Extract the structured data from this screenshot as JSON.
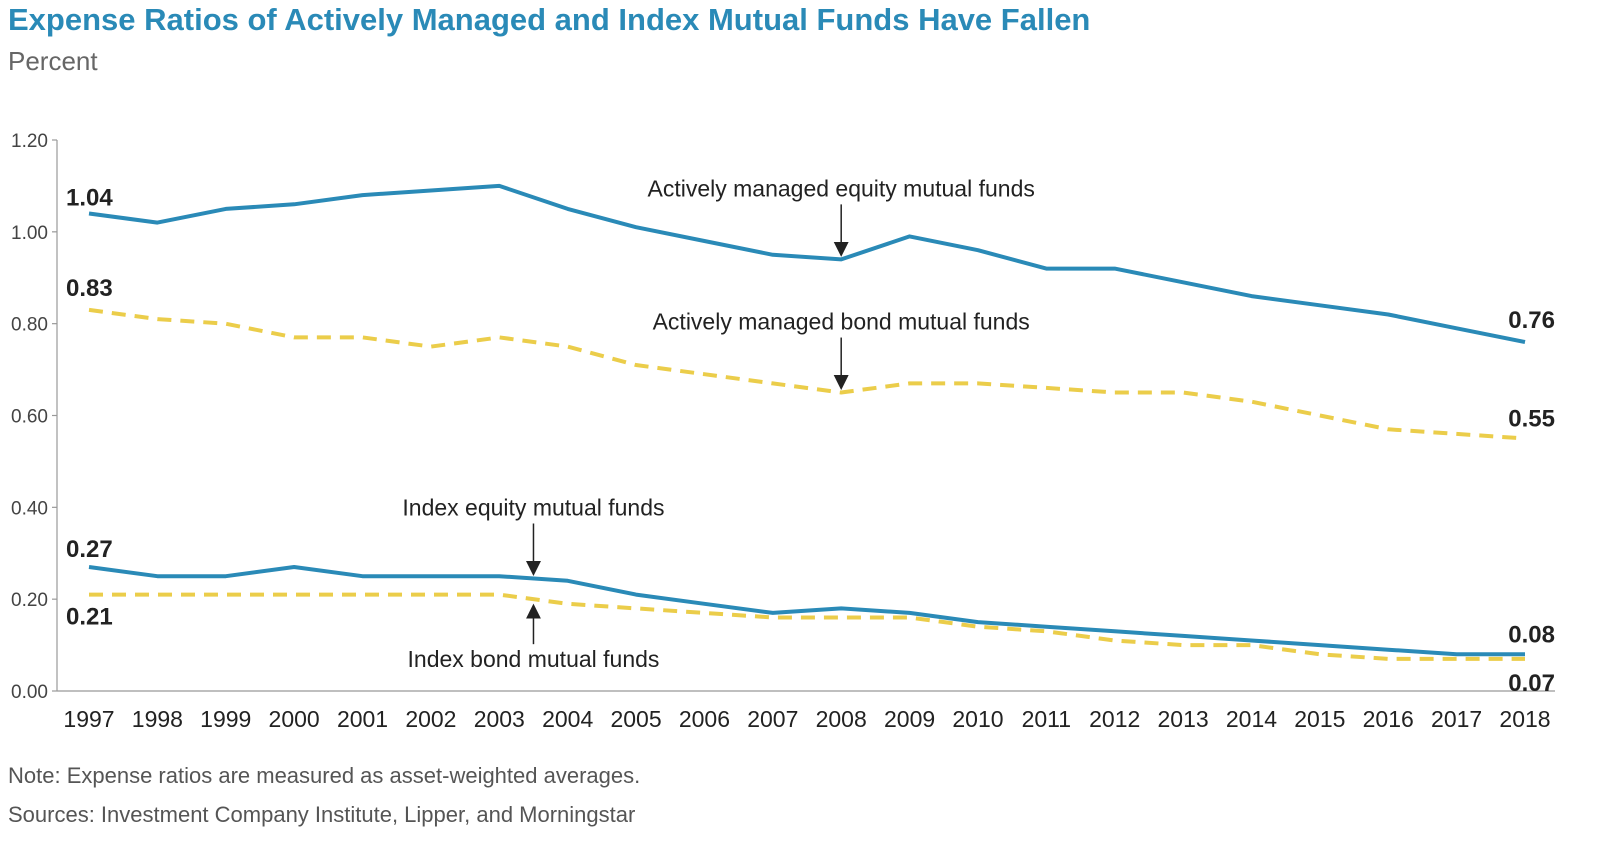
{
  "chart_data": {
    "type": "line",
    "title": "Expense Ratios of Actively Managed and Index Mutual Funds Have Fallen",
    "subtitle": "Percent",
    "x": [
      "1997",
      "1998",
      "1999",
      "2000",
      "2001",
      "2002",
      "2003",
      "2004",
      "2005",
      "2006",
      "2007",
      "2008",
      "2009",
      "2010",
      "2011",
      "2012",
      "2013",
      "2014",
      "2015",
      "2016",
      "2017",
      "2018"
    ],
    "ylim": [
      0,
      1.2
    ],
    "yticks": [
      "0.00",
      "0.20",
      "0.40",
      "0.60",
      "0.80",
      "1.00",
      "1.20"
    ],
    "grid": false,
    "series": [
      {
        "name": "Actively managed equity mutual funds",
        "style": "solid",
        "color": "#2a8ab7",
        "values": [
          1.04,
          1.02,
          1.05,
          1.06,
          1.08,
          1.09,
          1.1,
          1.05,
          1.01,
          0.98,
          0.95,
          0.94,
          0.99,
          0.96,
          0.92,
          0.92,
          0.89,
          0.86,
          0.84,
          0.82,
          0.79,
          0.76
        ],
        "start_label": "1.04",
        "end_label": "0.76"
      },
      {
        "name": "Actively managed bond mutual funds",
        "style": "dashed",
        "color": "#ebcd4a",
        "values": [
          0.83,
          0.81,
          0.8,
          0.77,
          0.77,
          0.75,
          0.77,
          0.75,
          0.71,
          0.69,
          0.67,
          0.65,
          0.67,
          0.67,
          0.66,
          0.65,
          0.65,
          0.63,
          0.6,
          0.57,
          0.56,
          0.55
        ],
        "start_label": "0.83",
        "end_label": "0.55"
      },
      {
        "name": "Index equity mutual funds",
        "style": "solid",
        "color": "#2a8ab7",
        "values": [
          0.27,
          0.25,
          0.25,
          0.27,
          0.25,
          0.25,
          0.25,
          0.24,
          0.21,
          0.19,
          0.17,
          0.18,
          0.17,
          0.15,
          0.14,
          0.13,
          0.12,
          0.11,
          0.1,
          0.09,
          0.08,
          0.08
        ],
        "start_label": "0.27",
        "end_label": "0.08"
      },
      {
        "name": "Index bond mutual funds",
        "style": "dashed",
        "color": "#ebcd4a",
        "values": [
          0.21,
          0.21,
          0.21,
          0.21,
          0.21,
          0.21,
          0.21,
          0.19,
          0.18,
          0.17,
          0.16,
          0.16,
          0.16,
          0.14,
          0.13,
          0.11,
          0.1,
          0.1,
          0.08,
          0.07,
          0.07,
          0.07
        ],
        "start_label": "0.21",
        "end_label": "0.07"
      }
    ],
    "annotations": [
      {
        "text": "Actively managed equity mutual funds",
        "series": 0,
        "at_year": "2008",
        "direction": "down"
      },
      {
        "text": "Actively managed bond mutual funds",
        "series": 1,
        "at_year": "2008",
        "direction": "down"
      },
      {
        "text": "Index equity mutual funds",
        "series": 2,
        "at_year": "2003.5",
        "direction": "down"
      },
      {
        "text": "Index bond mutual funds",
        "series": 3,
        "at_year": "2003.5",
        "direction": "up"
      }
    ]
  },
  "footer": {
    "note": "Note: Expense ratios are measured as asset-weighted averages.",
    "sources": "Sources: Investment Company Institute, Lipper, and Morningstar"
  }
}
